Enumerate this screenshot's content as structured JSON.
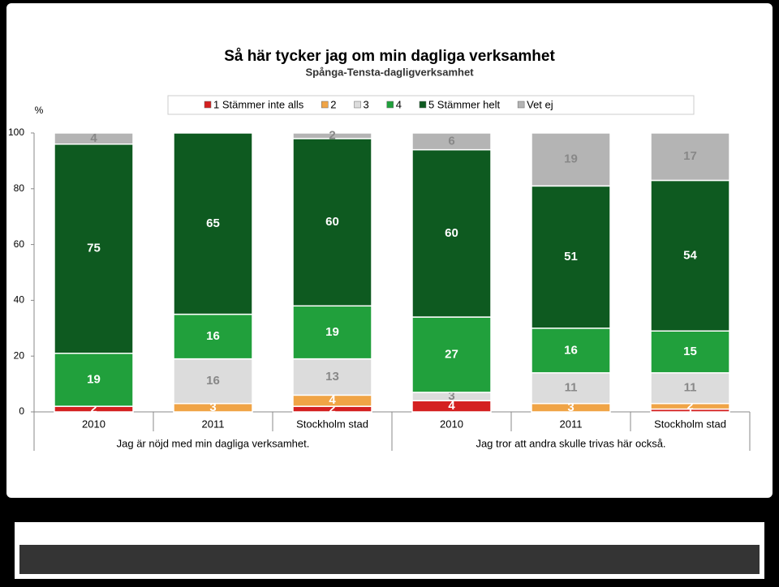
{
  "chart_data": {
    "type": "stacked_bar",
    "title": "Så här tycker jag om min dagliga verksamhet",
    "subtitle": "Spånga-Tensta-dagligverksamhet",
    "y_label": "%",
    "categories": [
      "2010",
      "2011",
      "Stockholm stad",
      "2010",
      "2011",
      "Stockholm stad"
    ],
    "groups": [
      "Jag är nöjd med min dagliga verksamhet.",
      "Jag tror att andra skulle trivas här också."
    ],
    "series": [
      {
        "name": "1 Stämmer inte alls",
        "color": "#d42020",
        "values": [
          2,
          null,
          2,
          4,
          null,
          1
        ]
      },
      {
        "name": "2",
        "color": "#f0a446",
        "values": [
          null,
          3,
          4,
          null,
          3,
          2
        ]
      },
      {
        "name": "3",
        "color": "#dcdcdc",
        "values": [
          null,
          16,
          13,
          3,
          11,
          11
        ]
      },
      {
        "name": "4",
        "color": "#21a03c",
        "values": [
          19,
          16,
          19,
          27,
          16,
          15
        ]
      },
      {
        "name": "5 Stämmer helt",
        "color": "#0e5a20",
        "values": [
          75,
          65,
          60,
          60,
          51,
          54
        ]
      },
      {
        "name": "Vet ej",
        "color": "#b4b4b4",
        "values": [
          4,
          null,
          2,
          6,
          19,
          17
        ]
      }
    ],
    "ylim": [
      0,
      100
    ],
    "yticks": [
      0,
      20,
      40,
      60,
      80,
      100
    ]
  }
}
